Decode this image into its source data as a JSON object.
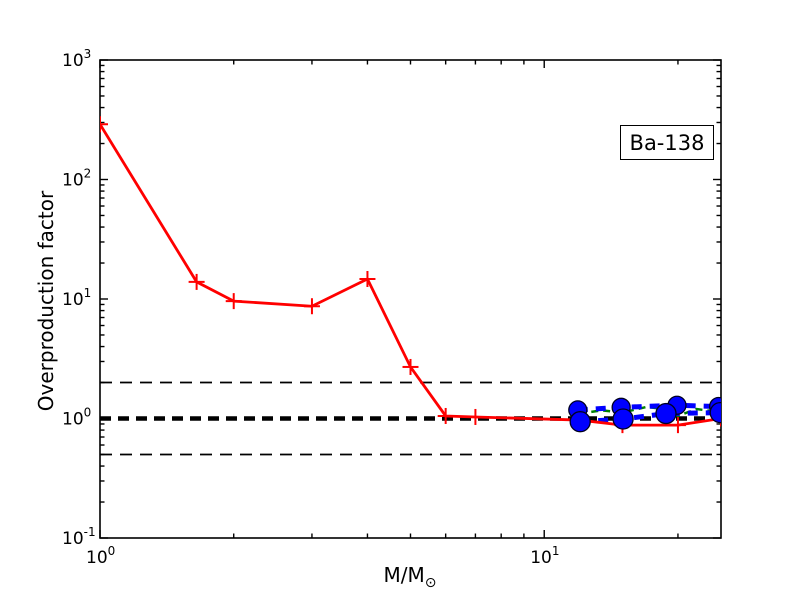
{
  "figure": {
    "background": "#ffffff",
    "ylabel": "Overproduction factor",
    "xlabel_main": "M/M",
    "xlabel_sub": "⊙",
    "annotation_box": {
      "label": "Ba-138"
    }
  },
  "chart_data": {
    "type": "line",
    "title": "",
    "xlabel": "M/M_sun",
    "ylabel": "Overproduction factor",
    "xscale": "log",
    "yscale": "log",
    "xlim": [
      1,
      25
    ],
    "ylim": [
      0.1,
      1000
    ],
    "grid": false,
    "legend": "none",
    "annotation": {
      "label": "Ba-138"
    },
    "x_major_ticks": [
      1,
      10
    ],
    "x_major_tick_labels": [
      {
        "m": "10",
        "e": "0"
      },
      {
        "m": "10",
        "e": "1"
      }
    ],
    "x_minor_ticks": [
      2,
      3,
      4,
      5,
      6,
      7,
      8,
      9,
      20
    ],
    "y_major_ticks": [
      0.1,
      1,
      10,
      100,
      1000
    ],
    "y_major_tick_labels": [
      {
        "m": "10",
        "e": "-1"
      },
      {
        "m": "10",
        "e": "0"
      },
      {
        "m": "10",
        "e": "1"
      },
      {
        "m": "10",
        "e": "2"
      },
      {
        "m": "10",
        "e": "3"
      }
    ],
    "reference_lines": [
      {
        "name": "factor-two-line",
        "y": 2,
        "color": "#000000",
        "style": "dashed"
      },
      {
        "name": "unity-line",
        "y": 1,
        "color": "#000000",
        "style": "dashed-thick"
      },
      {
        "name": "factor-half-line",
        "y": 0.5,
        "color": "#000000",
        "style": "dashed"
      }
    ],
    "series": [
      {
        "name": "agb-models-red",
        "color": "#ff0000",
        "line": "solid",
        "marker": "plus",
        "marker_size": 8,
        "x": [
          1,
          1.65,
          2,
          3,
          4,
          5,
          6,
          7,
          12,
          15,
          20,
          25
        ],
        "y": [
          290,
          13.9,
          9.6,
          8.7,
          14.7,
          2.7,
          1.05,
          1.03,
          0.97,
          0.88,
          0.88,
          1.0
        ]
      },
      {
        "name": "massive-models-green",
        "color": "#008000",
        "line": "dashed",
        "marker": "none",
        "marker_size": 0,
        "x": [
          12,
          13.5,
          15,
          17,
          18.5,
          20,
          22,
          25
        ],
        "y": [
          1.1,
          1.17,
          1.12,
          1.25,
          1.2,
          1.05,
          1.2,
          1.13
        ]
      },
      {
        "name": "massive-models-blue-upper",
        "color": "#0000ff",
        "line": "dashed-thick",
        "marker": "circle",
        "marker_size": 9,
        "x": [
          11.9,
          14.9,
          19.9,
          24.7
        ],
        "y": [
          1.18,
          1.24,
          1.29,
          1.26
        ]
      },
      {
        "name": "massive-models-blue-lower",
        "color": "#0000ff",
        "line": "dashed-thick",
        "marker": "circle",
        "marker_size": 10,
        "x": [
          12.05,
          15.05,
          18.8,
          24.9
        ],
        "y": [
          0.94,
          0.99,
          1.1,
          1.12
        ]
      }
    ]
  }
}
